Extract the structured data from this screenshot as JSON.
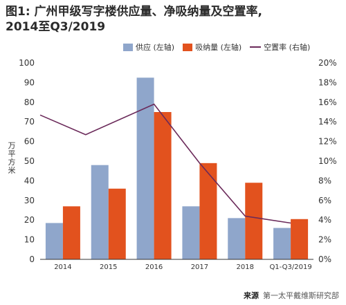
{
  "title": {
    "line1": "图1: 广州甲级写字楼供应量、净吸纳量及空置率,",
    "line2": "2014至Q3/2019"
  },
  "source": {
    "label": "来源",
    "text": "第一太平戴维斯研究部"
  },
  "colors": {
    "supply": "#8fa6cb",
    "absorption": "#e2521e",
    "vacancy": "#6b2a5a",
    "axis": "#333333"
  },
  "chart_data": {
    "type": "bar",
    "categories": [
      "2014",
      "2015",
      "2016",
      "2017",
      "2018",
      "Q1-Q3/2019"
    ],
    "series": [
      {
        "name": "供应 (左轴)",
        "type": "bar",
        "axis": "left",
        "values": [
          18.5,
          48,
          92.5,
          27,
          21,
          16
        ]
      },
      {
        "name": "吸纳量 (左轴)",
        "type": "bar",
        "axis": "left",
        "values": [
          27,
          36,
          75,
          49,
          39,
          20.5
        ]
      },
      {
        "name": "空置率 (右轴)",
        "type": "line",
        "axis": "right",
        "values": [
          14.7,
          12.7,
          15.8,
          9.8,
          4.4,
          3.7
        ]
      }
    ],
    "ylabel": "万平方米",
    "ylim": [
      0,
      100
    ],
    "y_ticks": [
      "0",
      "10",
      "20",
      "30",
      "40",
      "50",
      "60",
      "70",
      "80",
      "90",
      "100"
    ],
    "y2lim": [
      0,
      20
    ],
    "y2_ticks": [
      "0%",
      "2%",
      "4%",
      "6%",
      "8%",
      "10%",
      "12%",
      "14%",
      "16%",
      "18%",
      "20%"
    ],
    "grid": false,
    "legend_position": "top-right"
  }
}
